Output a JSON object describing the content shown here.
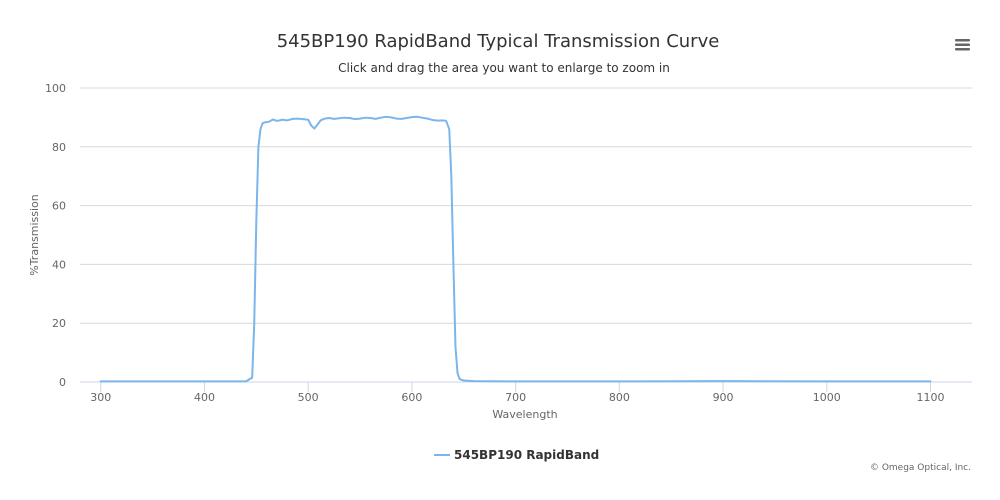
{
  "chart_data": {
    "type": "line",
    "title": "545BP190 RapidBand Typical Transmission Curve",
    "subtitle": "Click and drag the area you want to enlarge to zoom in",
    "xlabel": "Wavelength",
    "ylabel": "%Transmission",
    "xlim": [
      280,
      1140
    ],
    "ylim": [
      0,
      100
    ],
    "x_ticks": [
      300,
      400,
      500,
      600,
      700,
      800,
      900,
      1000,
      1100
    ],
    "y_ticks": [
      0,
      20,
      40,
      60,
      80,
      100
    ],
    "grid": true,
    "legend": "bottom-center",
    "series": [
      {
        "name": "545BP190 RapidBand",
        "color": "#7cb5ec",
        "x": [
          300,
          440,
          446,
          448,
          450,
          452,
          454,
          456,
          458,
          462,
          466,
          470,
          475,
          480,
          485,
          490,
          495,
          500,
          503,
          506,
          509,
          512,
          516,
          520,
          525,
          530,
          535,
          540,
          545,
          550,
          555,
          560,
          565,
          570,
          575,
          580,
          585,
          590,
          595,
          600,
          605,
          610,
          615,
          620,
          625,
          630,
          633,
          636,
          638,
          640,
          642,
          644,
          646,
          650,
          660,
          700,
          800,
          900,
          1000,
          1100
        ],
        "y": [
          0.2,
          0.2,
          1.5,
          20,
          55,
          80,
          86,
          88,
          88.3,
          88.5,
          89.3,
          88.8,
          89.2,
          89.0,
          89.5,
          89.6,
          89.4,
          89.2,
          87.2,
          86.2,
          87.6,
          89.0,
          89.6,
          89.8,
          89.5,
          89.7,
          89.9,
          89.8,
          89.4,
          89.6,
          89.9,
          89.8,
          89.5,
          89.9,
          90.2,
          90.0,
          89.6,
          89.5,
          89.8,
          90.1,
          90.2,
          89.9,
          89.6,
          89.1,
          88.9,
          89.0,
          88.8,
          86.0,
          70,
          40,
          12,
          3,
          1.0,
          0.5,
          0.3,
          0.2,
          0.2,
          0.3,
          0.2,
          0.2
        ]
      }
    ]
  },
  "credits": "© Omega Optical, Inc.",
  "menu_icon": "hamburger-menu-icon"
}
